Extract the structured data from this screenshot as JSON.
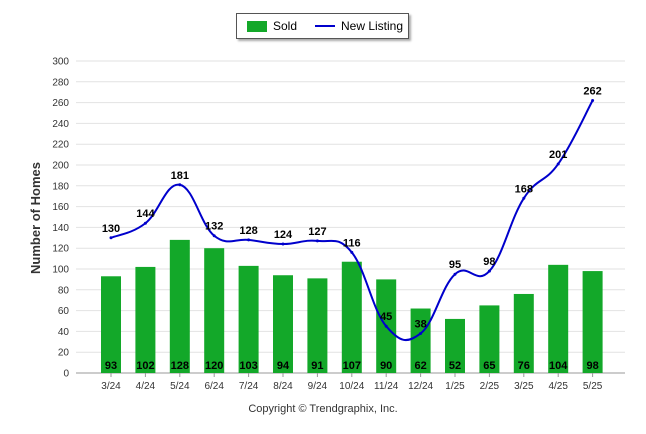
{
  "chart_data": {
    "type": "bar",
    "title": "",
    "ylabel": "Number of Homes",
    "xlabel": "",
    "ylim": [
      0,
      300
    ],
    "ytick_step": 20,
    "grid": true,
    "legend_position": "top-center",
    "categories": [
      "3/24",
      "4/24",
      "5/24",
      "6/24",
      "7/24",
      "8/24",
      "9/24",
      "10/24",
      "11/24",
      "12/24",
      "1/25",
      "2/25",
      "3/25",
      "4/25",
      "5/25"
    ],
    "series": [
      {
        "name": "Sold",
        "type": "bar",
        "color": "#13a829",
        "values": [
          93,
          102,
          128,
          120,
          103,
          94,
          91,
          107,
          90,
          62,
          52,
          65,
          76,
          104,
          98
        ]
      },
      {
        "name": "New Listing",
        "type": "line",
        "color": "#0000cc",
        "values": [
          130,
          144,
          181,
          132,
          128,
          124,
          127,
          116,
          45,
          38,
          95,
          98,
          168,
          201,
          262
        ]
      }
    ]
  },
  "legend": {
    "sold_label": "Sold",
    "new_listing_label": "New Listing"
  },
  "footer": {
    "copyright": "Copyright © Trendgraphix, Inc."
  }
}
